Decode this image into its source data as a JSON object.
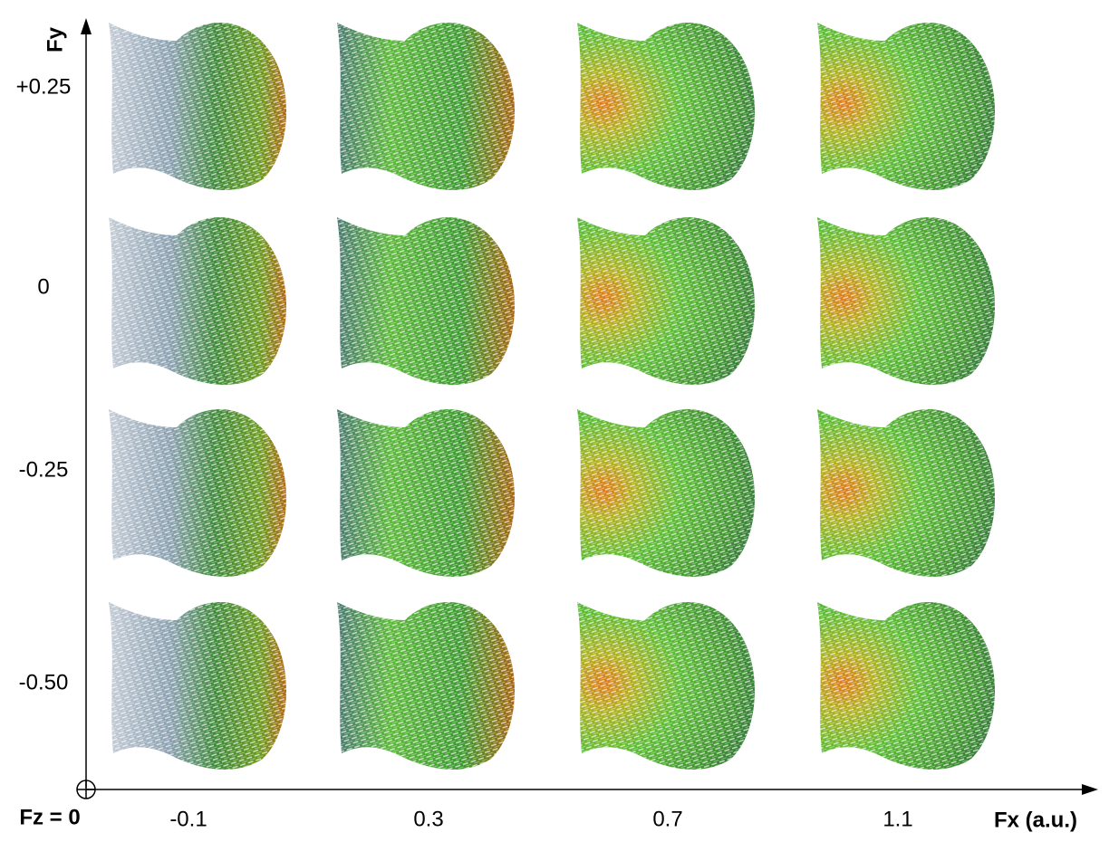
{
  "axes": {
    "y_label": "Fy",
    "x_label": "Fx (a.u.)",
    "corner_label": "Fz = 0"
  },
  "columns": [
    "-0.1",
    "0.3",
    "0.7",
    "1.1"
  ],
  "rows": [
    "+0.25",
    "0",
    "-0.25",
    "-0.50"
  ]
}
